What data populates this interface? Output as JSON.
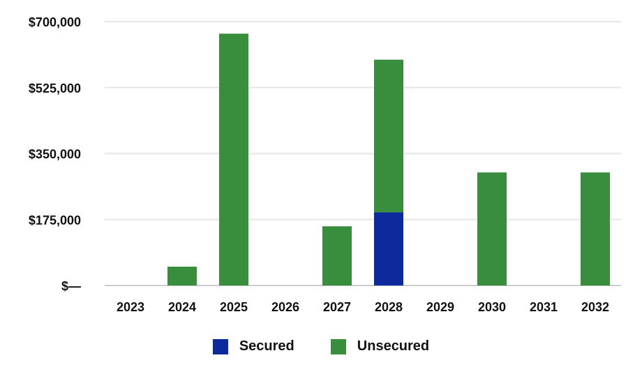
{
  "chart_data": {
    "type": "bar",
    "stacked": true,
    "categories": [
      "2023",
      "2024",
      "2025",
      "2026",
      "2027",
      "2028",
      "2029",
      "2030",
      "2031",
      "2032"
    ],
    "series": [
      {
        "name": "Secured",
        "color": "#0d2a9c",
        "values": [
          0,
          0,
          0,
          0,
          0,
          194000,
          0,
          0,
          0,
          0
        ]
      },
      {
        "name": "Unsecured",
        "color": "#388e3c",
        "values": [
          0,
          50000,
          668000,
          0,
          157000,
          405000,
          0,
          300000,
          0,
          300000
        ]
      }
    ],
    "y_ticks": [
      {
        "value": 0,
        "label": "$—"
      },
      {
        "value": 175000,
        "label": "$175,000"
      },
      {
        "value": 350000,
        "label": "$350,000"
      },
      {
        "value": 525000,
        "label": "$525,000"
      },
      {
        "value": 700000,
        "label": "$700,000"
      }
    ],
    "ylim": [
      0,
      700000
    ],
    "grid": true,
    "legend_position": "bottom"
  }
}
